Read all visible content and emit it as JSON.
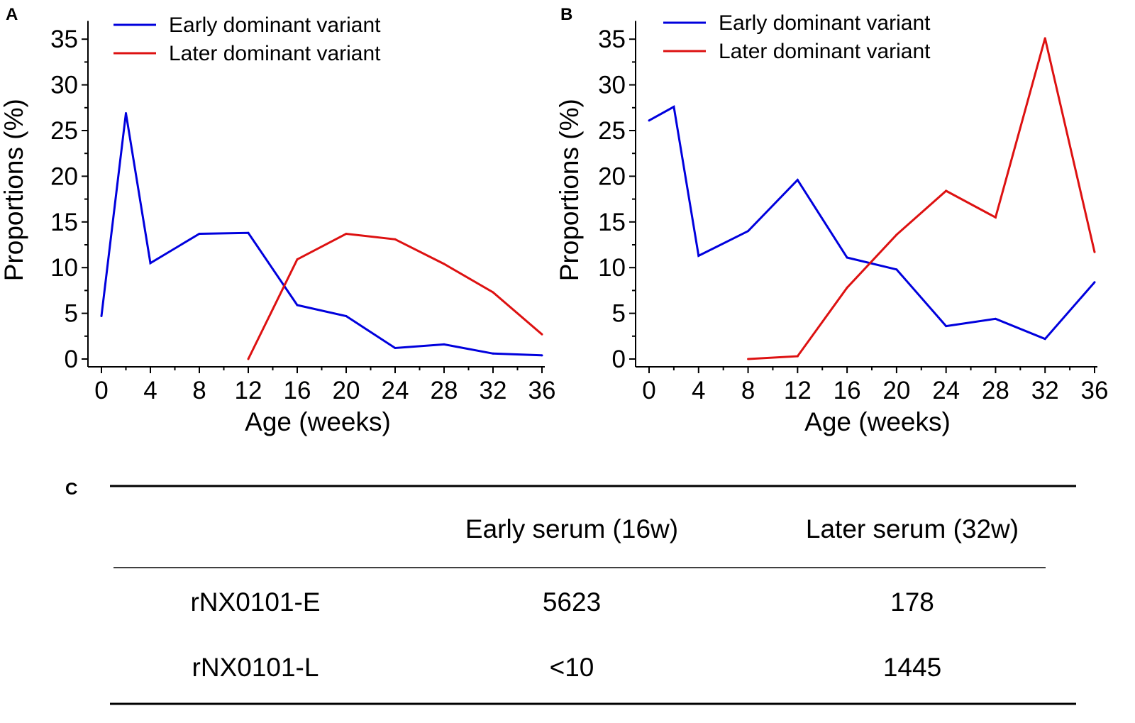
{
  "panel_labels": {
    "a": "A",
    "b": "B",
    "c": "C"
  },
  "chart_data": [
    {
      "type": "line",
      "panel": "A",
      "xlabel": "Age (weeks)",
      "ylabel": "Proportions (%)",
      "xlim": [
        0,
        36
      ],
      "ylim": [
        0,
        37
      ],
      "x_ticks": [
        0,
        4,
        8,
        12,
        16,
        20,
        24,
        28,
        32,
        36
      ],
      "y_ticks": [
        0,
        5,
        10,
        15,
        20,
        25,
        30,
        35
      ],
      "legend_position": "top-left",
      "series": [
        {
          "name": "Early dominant variant",
          "color": "#0000dd",
          "x": [
            0,
            2,
            4,
            8,
            12,
            16,
            20,
            24,
            28,
            32,
            36
          ],
          "y": [
            4.7,
            26.9,
            10.5,
            13.7,
            13.8,
            5.9,
            4.7,
            1.2,
            1.6,
            0.6,
            0.4
          ]
        },
        {
          "name": "Later dominant variant",
          "color": "#dd1111",
          "x": [
            12,
            16,
            20,
            24,
            28,
            32,
            36
          ],
          "y": [
            0.0,
            10.9,
            13.7,
            13.1,
            10.4,
            7.3,
            2.7
          ]
        }
      ]
    },
    {
      "type": "line",
      "panel": "B",
      "xlabel": "Age (weeks)",
      "ylabel": "Proportions (%)",
      "xlim": [
        0,
        36
      ],
      "ylim": [
        0,
        37
      ],
      "x_ticks": [
        0,
        4,
        8,
        12,
        16,
        20,
        24,
        28,
        32,
        36
      ],
      "y_ticks": [
        0,
        5,
        10,
        15,
        20,
        25,
        30,
        35
      ],
      "legend_position": "top-left",
      "series": [
        {
          "name": "Early dominant variant",
          "color": "#0000dd",
          "x": [
            0,
            2,
            4,
            8,
            12,
            16,
            20,
            24,
            28,
            32,
            36
          ],
          "y": [
            26.1,
            27.6,
            11.3,
            14.0,
            19.6,
            11.1,
            9.8,
            3.6,
            4.4,
            2.2,
            8.4
          ]
        },
        {
          "name": "Later dominant variant",
          "color": "#dd1111",
          "x": [
            8,
            12,
            16,
            20,
            24,
            28,
            32,
            36
          ],
          "y": [
            0.0,
            0.3,
            7.8,
            13.6,
            18.4,
            15.5,
            35.1,
            11.7
          ]
        }
      ]
    },
    {
      "type": "table",
      "panel": "C",
      "columns": [
        "",
        "Early serum (16w)",
        "Later serum (32w)"
      ],
      "rows": [
        [
          "rNX0101-E",
          "5623",
          "178"
        ],
        [
          "rNX0101-L",
          "<10",
          "1445"
        ]
      ]
    }
  ]
}
